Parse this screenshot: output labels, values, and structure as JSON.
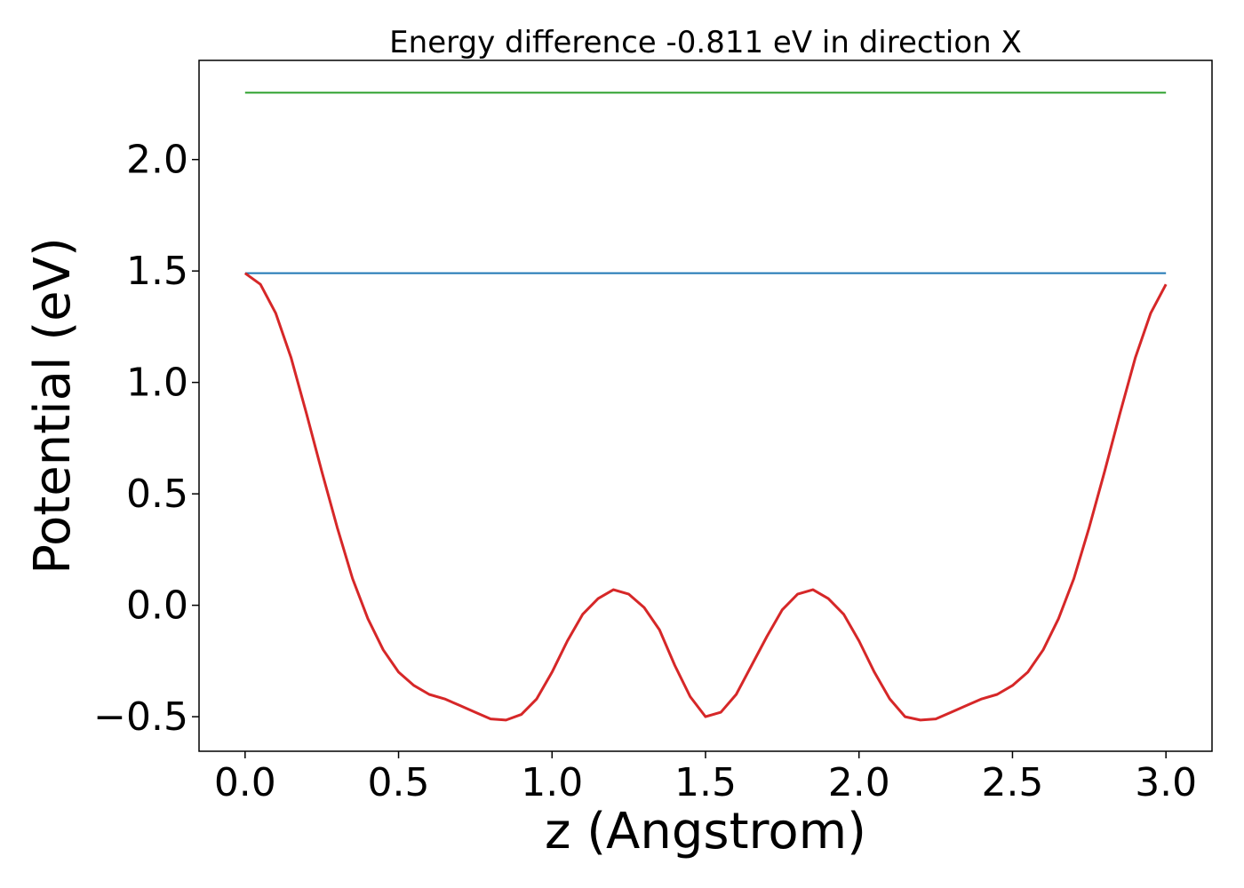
{
  "chart_data": {
    "type": "line",
    "title": "Energy difference -0.811 eV in direction X",
    "xlabel": "z (Angstrom)",
    "ylabel": "Potential (eV)",
    "xlim": [
      -0.15,
      3.15
    ],
    "ylim": [
      -0.655,
      2.445
    ],
    "xticks": [
      0.0,
      0.5,
      1.0,
      1.5,
      2.0,
      2.5,
      3.0
    ],
    "xtick_labels": [
      "0.0",
      "0.5",
      "1.0",
      "1.5",
      "2.0",
      "2.5",
      "3.0"
    ],
    "yticks": [
      -0.5,
      0.0,
      0.5,
      1.0,
      1.5,
      2.0
    ],
    "ytick_labels": [
      "−0.5",
      "0.0",
      "0.5",
      "1.0",
      "1.5",
      "2.0"
    ],
    "grid": false,
    "legend": "none",
    "series": [
      {
        "color": "#d62728",
        "x": [
          0.0,
          0.05,
          0.1,
          0.15,
          0.2,
          0.25,
          0.3,
          0.35,
          0.4,
          0.45,
          0.5,
          0.55,
          0.6,
          0.65,
          0.7,
          0.75,
          0.8,
          0.85,
          0.9,
          0.95,
          1.0,
          1.05,
          1.1,
          1.15,
          1.2,
          1.25,
          1.3,
          1.35,
          1.4,
          1.45,
          1.5,
          1.55,
          1.6,
          1.65,
          1.7,
          1.75,
          1.8,
          1.85,
          1.9,
          1.95,
          2.0,
          2.05,
          2.1,
          2.15,
          2.2,
          2.25,
          2.3,
          2.35,
          2.4,
          2.45,
          2.5,
          2.55,
          2.6,
          2.65,
          2.7,
          2.75,
          2.8,
          2.85,
          2.9,
          2.95,
          3.0
        ],
        "y": [
          1.49,
          1.44,
          1.31,
          1.11,
          0.86,
          0.6,
          0.35,
          0.12,
          -0.06,
          -0.2,
          -0.3,
          -0.36,
          -0.4,
          -0.42,
          -0.45,
          -0.48,
          -0.51,
          -0.515,
          -0.49,
          -0.42,
          -0.3,
          -0.16,
          -0.04,
          0.03,
          0.07,
          0.05,
          -0.01,
          -0.11,
          -0.27,
          -0.41,
          -0.5,
          -0.48,
          -0.4,
          -0.27,
          -0.14,
          -0.02,
          0.05,
          0.07,
          0.03,
          -0.04,
          -0.16,
          -0.3,
          -0.42,
          -0.5,
          -0.515,
          -0.51,
          -0.48,
          -0.45,
          -0.42,
          -0.4,
          -0.36,
          -0.3,
          -0.2,
          -0.06,
          0.12,
          0.35,
          0.6,
          0.86,
          1.11,
          1.31,
          1.44
        ]
      },
      {
        "color": "#1f77b4",
        "x": [
          0.0,
          3.0
        ],
        "y": [
          1.49,
          1.49
        ]
      },
      {
        "color": "#2ca02c",
        "x": [
          0.0,
          3.0
        ],
        "y": [
          2.3,
          2.3
        ]
      }
    ]
  }
}
